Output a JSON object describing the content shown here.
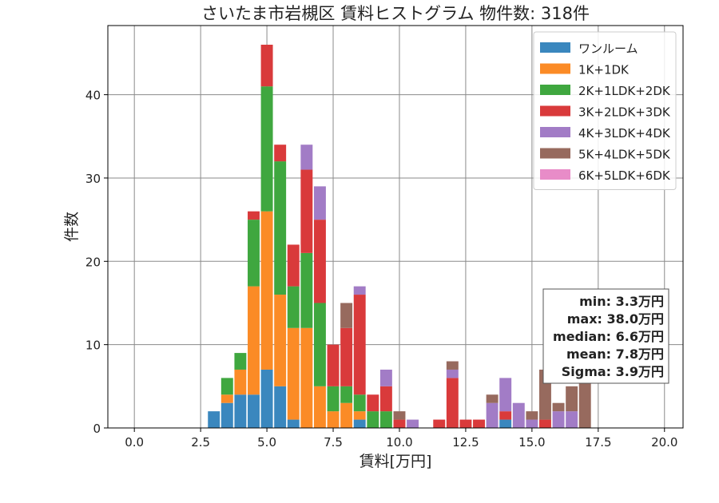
{
  "chart_data": {
    "type": "bar",
    "stacked": true,
    "title": "さいたま市岩槻区 賃料ヒストグラム  物件数: 318件",
    "xlabel": "賃料[万円]",
    "ylabel": "件数",
    "xlim": [
      -1.0,
      20.7
    ],
    "ylim": [
      0,
      48.3
    ],
    "xticks": [
      0.0,
      2.5,
      5.0,
      7.5,
      10.0,
      12.5,
      15.0,
      17.5,
      20.0
    ],
    "xtick_labels": [
      "0.0",
      "2.5",
      "5.0",
      "7.5",
      "10.0",
      "12.5",
      "15.0",
      "17.5",
      "20.0"
    ],
    "yticks": [
      0,
      10,
      20,
      30,
      40
    ],
    "ytick_labels": [
      "0",
      "10",
      "20",
      "30",
      "40"
    ],
    "grid": true,
    "legend_position": "top-right",
    "bin_width": 0.5,
    "x": [
      3.0,
      3.5,
      4.0,
      4.5,
      5.0,
      5.5,
      6.0,
      6.5,
      7.0,
      7.5,
      8.0,
      8.5,
      9.0,
      9.5,
      10.0,
      10.5,
      11.0,
      11.5,
      12.0,
      12.5,
      13.0,
      13.5,
      14.0,
      14.5,
      15.0,
      15.5,
      16.0,
      16.5,
      17.0
    ],
    "series": [
      {
        "name": "ワンルーム",
        "color": "#3a87be",
        "values": [
          2,
          3,
          4,
          4,
          7,
          5,
          1,
          0,
          0,
          0,
          0,
          1,
          0,
          0,
          0,
          0,
          0,
          0,
          0,
          0,
          0,
          0,
          1,
          0,
          0,
          0,
          0,
          0,
          0
        ]
      },
      {
        "name": "1K+1DK",
        "color": "#fb8b26",
        "values": [
          0,
          1,
          3,
          13,
          19,
          11,
          11,
          12,
          5,
          2,
          3,
          1,
          0,
          0,
          0,
          0,
          0,
          0,
          0,
          0,
          0,
          0,
          0,
          0,
          0,
          0,
          0,
          0,
          0
        ]
      },
      {
        "name": "2K+1LDK+2DK",
        "color": "#3fa73f",
        "values": [
          0,
          2,
          2,
          8,
          15,
          16,
          5,
          9,
          10,
          3,
          2,
          2,
          2,
          2,
          0,
          0,
          0,
          0,
          0,
          0,
          0,
          0,
          0,
          0,
          0,
          0,
          0,
          0,
          0
        ]
      },
      {
        "name": "3K+2LDK+3DK",
        "color": "#d93a3b",
        "values": [
          0,
          0,
          0,
          1,
          5,
          2,
          5,
          10,
          10,
          5,
          7,
          12,
          2,
          3,
          1,
          0,
          0,
          1,
          6,
          1,
          1,
          0,
          1,
          0,
          0,
          1,
          0,
          0,
          0
        ]
      },
      {
        "name": "4K+3LDK+4DK",
        "color": "#a27cc6",
        "values": [
          0,
          0,
          0,
          0,
          0,
          0,
          0,
          3,
          4,
          0,
          0,
          1,
          0,
          2,
          0,
          1,
          0,
          0,
          1,
          0,
          0,
          3,
          4,
          3,
          1,
          0,
          2,
          2,
          0
        ]
      },
      {
        "name": "5K+4LDK+5DK",
        "color": "#976a5e",
        "values": [
          0,
          0,
          0,
          0,
          0,
          0,
          0,
          0,
          0,
          0,
          3,
          0,
          0,
          0,
          1,
          0,
          0,
          0,
          1,
          0,
          0,
          1,
          0,
          0,
          1,
          6,
          1,
          3,
          6
        ]
      },
      {
        "name": "6K+5LDK+6DK",
        "color": "#e88cc8",
        "values": [
          0,
          0,
          0,
          0,
          0,
          0,
          0,
          0,
          0,
          0,
          0,
          0,
          0,
          0,
          0,
          0,
          0,
          0,
          0,
          0,
          0,
          0,
          0,
          0,
          0,
          0,
          0,
          0,
          0
        ]
      }
    ],
    "stats_lines": [
      "min: 3.3万円",
      "max: 38.0万円",
      "median: 6.6万円",
      "mean: 7.8万円",
      "Sigma: 3.9万円"
    ]
  }
}
